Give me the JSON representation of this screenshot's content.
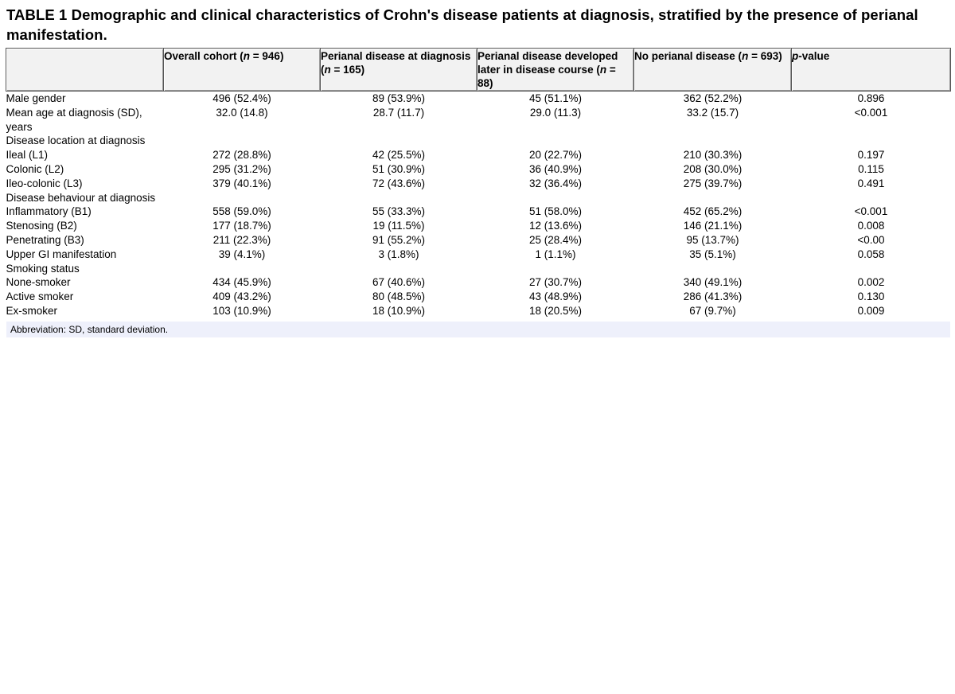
{
  "title": "TABLE 1 Demographic and clinical characteristics of Crohn's disease patients at diagnosis, stratified by the presence of perianal manifestation.",
  "headers": [
    {
      "pre": "",
      "italic": "",
      "post": ""
    },
    {
      "pre": "Overall cohort (",
      "italic": "n",
      "post": " = 946)"
    },
    {
      "pre": "Perianal disease at diagnosis (",
      "italic": "n",
      "post": " = 165)"
    },
    {
      "pre": "Perianal disease developed later in disease course (",
      "italic": "n",
      "post": " = 88)"
    },
    {
      "pre": "No perianal disease (",
      "italic": "n",
      "post": " = 693)"
    },
    {
      "pre": "",
      "italic": "p",
      "post": "-value"
    }
  ],
  "rows": [
    {
      "label": "Male gender",
      "values": [
        "496 (52.4%)",
        "89 (53.9%)",
        "45 (51.1%)",
        "362 (52.2%)",
        "0.896"
      ]
    },
    {
      "label": "Mean age at diagnosis (SD), years",
      "values": [
        "32.0 (14.8)",
        "28.7 (11.7)",
        "29.0 (11.3)",
        "33.2 (15.7)",
        "<0.001"
      ]
    },
    {
      "label": "Disease location at diagnosis",
      "values": [
        "",
        "",
        "",
        "",
        ""
      ]
    },
    {
      "label": "Ileal (L1)",
      "values": [
        "272 (28.8%)",
        "42 (25.5%)",
        "20 (22.7%)",
        "210 (30.3%)",
        "0.197"
      ]
    },
    {
      "label": "Colonic (L2)",
      "values": [
        "295 (31.2%)",
        "51 (30.9%)",
        "36 (40.9%)",
        "208 (30.0%)",
        "0.115"
      ]
    },
    {
      "label": "Ileo-colonic (L3)",
      "values": [
        "379 (40.1%)",
        "72 (43.6%)",
        "32 (36.4%)",
        "275 (39.7%)",
        "0.491"
      ]
    },
    {
      "label": "Disease behaviour at diagnosis",
      "values": [
        "",
        "",
        "",
        "",
        ""
      ]
    },
    {
      "label": "Inflammatory (B1)",
      "values": [
        "558 (59.0%)",
        "55 (33.3%)",
        "51 (58.0%)",
        "452 (65.2%)",
        "<0.001"
      ]
    },
    {
      "label": "Stenosing (B2)",
      "values": [
        "177 (18.7%)",
        "19 (11.5%)",
        "12 (13.6%)",
        "146 (21.1%)",
        "0.008"
      ]
    },
    {
      "label": "Penetrating (B3)",
      "values": [
        "211 (22.3%)",
        "91 (55.2%)",
        "25 (28.4%)",
        "95 (13.7%)",
        "<0.00"
      ]
    },
    {
      "label": "Upper GI manifestation",
      "values": [
        "39 (4.1%)",
        "3 (1.8%)",
        "1 (1.1%)",
        "35 (5.1%)",
        "0.058"
      ]
    },
    {
      "label": "Smoking status",
      "values": [
        "",
        "",
        "",
        "",
        ""
      ]
    },
    {
      "label": "None-smoker",
      "values": [
        "434 (45.9%)",
        "67 (40.6%)",
        "27 (30.7%)",
        "340 (49.1%)",
        "0.002"
      ]
    },
    {
      "label": "Active smoker",
      "values": [
        "409 (43.2%)",
        "80 (48.5%)",
        "43 (48.9%)",
        "286 (41.3%)",
        "0.130"
      ]
    },
    {
      "label": "Ex-smoker",
      "values": [
        "103 (10.9%)",
        "18 (10.9%)",
        "18 (20.5%)",
        "67 (9.7%)",
        "0.009"
      ]
    }
  ],
  "footnote": "Abbreviation: SD, standard deviation."
}
